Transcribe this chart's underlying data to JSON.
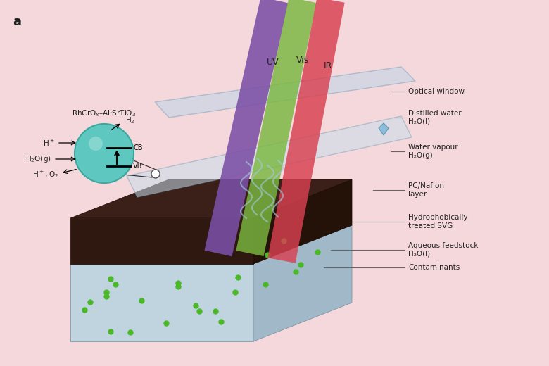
{
  "bg_color": "#f5d8dc",
  "title_label": "a",
  "beam_uv_color": "#7b4fa6",
  "beam_vis_color": "#7ab840",
  "beam_ir_color": "#d84050",
  "beam_labels": [
    "UV",
    "Vis",
    "IR"
  ],
  "sphere_color": "#5ec8c0",
  "sphere_edge_color": "#3aa8a0",
  "box_dark_top": "#3a2018",
  "box_dark_front": "#2e1810",
  "box_dark_side": "#241208",
  "box_light_top": "#b8ccd8",
  "box_light_front": "#c0d4e0",
  "box_light_side": "#a0b8c8",
  "window_color": "#c8d8e8",
  "window_edge": "#a0b8c8",
  "dot_color": "#4ab828",
  "annotation_line_color": "#555555",
  "text_color": "#222222",
  "layer_labels": [
    "Optical window",
    "Distilled water\nH₂O(l)",
    "Water vapour\nH₂O(g)",
    "PC/Nafion\nlayer",
    "Hydrophobically\ntreated SVG",
    "Aqueous feedstock\nH₂O(l)",
    "Contaminants"
  ]
}
